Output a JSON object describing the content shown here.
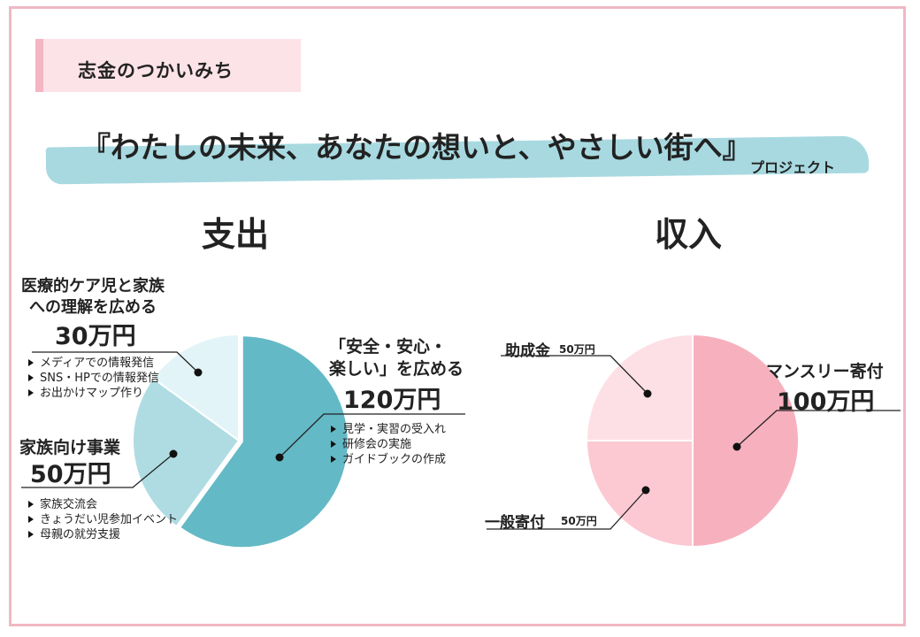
{
  "tag_label": "志金のつかいみち",
  "title": "『わたしの未来、あなたの想いと、やさしい街へ』",
  "subtitle": "プロジェクト",
  "colors": {
    "frame": "#f1b8c4",
    "tag": "#fbe3e8",
    "brush": "#a8d9e0",
    "expense": [
      "#64b9c6",
      "#afdce2",
      "#e3f4f8"
    ],
    "income": [
      "#f7b1be",
      "#fcc9d3",
      "#fde0e5"
    ]
  },
  "expense": {
    "heading": "支出",
    "items": [
      {
        "label_lines": [
          "「安全・安心・",
          "楽しい」を広める"
        ],
        "amount": "120万円",
        "bullets": [
          "見学・実習の受入れ",
          "研修会の実施",
          "ガイドブックの作成"
        ]
      },
      {
        "label_lines": [
          "家族向け事業"
        ],
        "amount": "50万円",
        "bullets": [
          "家族交流会",
          "きょうだい児参加イベント",
          "母親の就労支援"
        ]
      },
      {
        "label_lines": [
          "医療的ケア児と家族",
          "への理解を広める"
        ],
        "amount": "30万円",
        "bullets": [
          "メディアでの情報発信",
          "SNS・HPでの情報発信",
          "お出かけマップ作り"
        ]
      }
    ]
  },
  "income": {
    "heading": "収入",
    "items": [
      {
        "label": "マンスリー寄付",
        "amount": "100万円"
      },
      {
        "label": "一般寄付",
        "amount": "50万円"
      },
      {
        "label": "助成金",
        "amount": "50万円"
      }
    ]
  },
  "chart_data": [
    {
      "type": "pie",
      "title": "支出",
      "categories": [
        "「安全・安心・楽しい」を広める",
        "家族向け事業",
        "医療的ケア児と家族への理解を広める"
      ],
      "values": [
        120,
        50,
        30
      ],
      "unit": "万円",
      "colors": [
        "#64b9c6",
        "#afdce2",
        "#e3f4f8"
      ]
    },
    {
      "type": "pie",
      "title": "収入",
      "categories": [
        "マンスリー寄付",
        "一般寄付",
        "助成金"
      ],
      "values": [
        100,
        50,
        50
      ],
      "unit": "万円",
      "colors": [
        "#f7b1be",
        "#fcc9d3",
        "#fde0e5"
      ]
    }
  ]
}
